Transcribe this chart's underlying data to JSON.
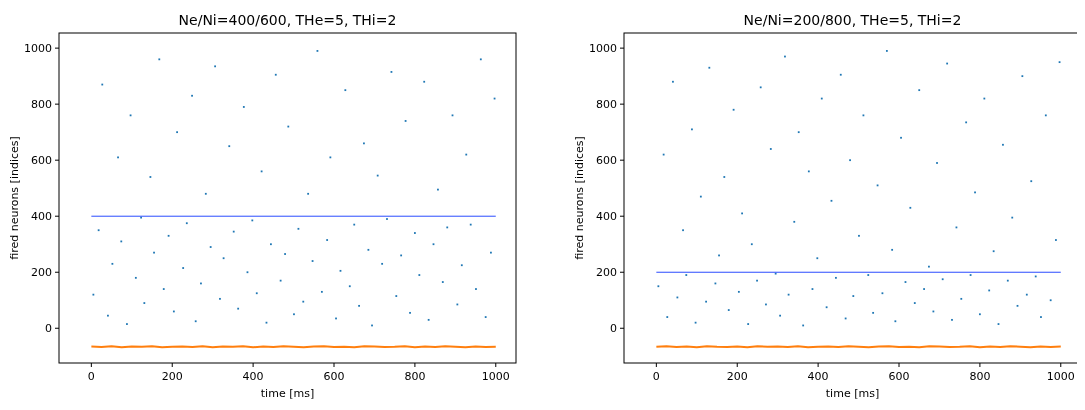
{
  "chart_data": [
    {
      "type": "scatter",
      "title": "Ne/Ni=400/600, THe=5, THi=2",
      "xlabel": "time [ms]",
      "ylabel": "fired neurons [indices]",
      "xlim": [
        -80,
        1050
      ],
      "ylim": [
        -124,
        1054
      ],
      "xticks": [
        0,
        200,
        400,
        600,
        800,
        1000
      ],
      "yticks": [
        0,
        200,
        400,
        600,
        800,
        1000
      ],
      "series": [
        {
          "marker": "square",
          "color": "#1f77b4",
          "x": [
            5,
            18,
            27,
            41,
            52,
            66,
            74,
            88,
            97,
            110,
            123,
            131,
            146,
            155,
            168,
            179,
            191,
            204,
            212,
            227,
            236,
            249,
            258,
            271,
            283,
            295,
            306,
            318,
            327,
            341,
            352,
            363,
            377,
            386,
            398,
            409,
            421,
            433,
            444,
            456,
            468,
            479,
            487,
            501,
            512,
            524,
            536,
            547,
            559,
            570,
            583,
            591,
            605,
            616,
            628,
            639,
            650,
            662,
            674,
            685,
            694,
            708,
            719,
            731,
            742,
            754,
            766,
            777,
            788,
            800,
            811,
            823,
            834,
            846,
            857,
            869,
            880,
            893,
            905,
            916,
            927,
            938,
            951,
            963,
            975,
            988,
            997
          ],
          "values": [
            120,
            350,
            870,
            45,
            230,
            610,
            310,
            15,
            760,
            180,
            395,
            90,
            540,
            270,
            960,
            140,
            330,
            60,
            700,
            215,
            375,
            830,
            25,
            160,
            480,
            290,
            935,
            105,
            250,
            650,
            345,
            70,
            790,
            200,
            385,
            125,
            560,
            20,
            300,
            905,
            170,
            265,
            720,
            50,
            355,
            95,
            480,
            240,
            990,
            130,
            315,
            610,
            35,
            205,
            850,
            150,
            370,
            80,
            660,
            280,
            10,
            545,
            230,
            390,
            915,
            115,
            260,
            740,
            55,
            340,
            190,
            880,
            30,
            300,
            495,
            165,
            360,
            760,
            85,
            225,
            620,
            370,
            140,
            960,
            40,
            270,
            820
          ]
        },
        {
          "type": "line",
          "color": "#2a4bff",
          "x": [
            0,
            1000
          ],
          "values": [
            400,
            400
          ]
        },
        {
          "type": "line",
          "color": "#ff7f0e",
          "x": [
            0,
            25,
            50,
            75,
            100,
            125,
            150,
            175,
            200,
            225,
            250,
            275,
            300,
            325,
            350,
            375,
            400,
            425,
            450,
            475,
            500,
            525,
            550,
            575,
            600,
            625,
            650,
            675,
            700,
            725,
            750,
            775,
            800,
            825,
            850,
            875,
            900,
            925,
            950,
            975,
            1000
          ],
          "values": [
            -65,
            -67,
            -64,
            -68,
            -65,
            -66,
            -64,
            -68,
            -66,
            -65,
            -67,
            -64,
            -68,
            -65,
            -66,
            -64,
            -68,
            -65,
            -67,
            -64,
            -66,
            -68,
            -65,
            -64,
            -67,
            -66,
            -68,
            -64,
            -65,
            -67,
            -66,
            -64,
            -68,
            -65,
            -67,
            -64,
            -66,
            -68,
            -65,
            -67,
            -66
          ]
        }
      ]
    },
    {
      "type": "scatter",
      "title": "Ne/Ni=200/800, THe=5, THi=2",
      "xlabel": "time [ms]",
      "ylabel": "fired neurons [indices]",
      "xlim": [
        -80,
        1050
      ],
      "ylim": [
        -124,
        1054
      ],
      "xticks": [
        0,
        200,
        400,
        600,
        800,
        1000
      ],
      "yticks": [
        0,
        200,
        400,
        600,
        800,
        1000
      ],
      "series": [
        {
          "marker": "square",
          "color": "#1f77b4",
          "x": [
            5,
            18,
            27,
            41,
            52,
            66,
            74,
            88,
            97,
            110,
            123,
            131,
            146,
            155,
            168,
            179,
            191,
            204,
            212,
            227,
            236,
            249,
            258,
            271,
            283,
            295,
            306,
            318,
            327,
            341,
            352,
            363,
            377,
            386,
            398,
            409,
            421,
            433,
            444,
            456,
            468,
            479,
            487,
            501,
            512,
            524,
            536,
            547,
            559,
            570,
            583,
            591,
            605,
            616,
            628,
            639,
            650,
            662,
            674,
            685,
            694,
            708,
            719,
            731,
            742,
            754,
            766,
            777,
            788,
            800,
            811,
            823,
            834,
            846,
            857,
            869,
            880,
            893,
            905,
            916,
            927,
            938,
            951,
            963,
            975,
            988,
            997
          ],
          "values": [
            150,
            620,
            40,
            880,
            110,
            350,
            190,
            710,
            20,
            470,
            95,
            930,
            160,
            260,
            540,
            65,
            780,
            130,
            410,
            15,
            300,
            170,
            860,
            85,
            640,
            195,
            45,
            970,
            120,
            380,
            700,
            10,
            560,
            140,
            250,
            820,
            75,
            455,
            180,
            905,
            35,
            600,
            115,
            330,
            760,
            190,
            55,
            510,
            125,
            990,
            280,
            25,
            680,
            165,
            430,
            90,
            850,
            140,
            220,
            60,
            590,
            175,
            945,
            30,
            360,
            105,
            735,
            190,
            485,
            50,
            820,
            135,
            275,
            15,
            655,
            170,
            395,
            80,
            900,
            120,
            525,
            185,
            40,
            760,
            100,
            315,
            950
          ]
        },
        {
          "type": "line",
          "color": "#2a4bff",
          "x": [
            0,
            1000
          ],
          "values": [
            200,
            200
          ]
        },
        {
          "type": "line",
          "color": "#ff7f0e",
          "x": [
            0,
            25,
            50,
            75,
            100,
            125,
            150,
            175,
            200,
            225,
            250,
            275,
            300,
            325,
            350,
            375,
            400,
            425,
            450,
            475,
            500,
            525,
            550,
            575,
            600,
            625,
            650,
            675,
            700,
            725,
            750,
            775,
            800,
            825,
            850,
            875,
            900,
            925,
            950,
            975,
            1000
          ],
          "values": [
            -66,
            -64,
            -67,
            -65,
            -68,
            -64,
            -66,
            -67,
            -65,
            -68,
            -64,
            -66,
            -65,
            -67,
            -64,
            -68,
            -66,
            -65,
            -67,
            -64,
            -66,
            -68,
            -65,
            -64,
            -67,
            -66,
            -68,
            -64,
            -65,
            -67,
            -66,
            -64,
            -68,
            -65,
            -67,
            -64,
            -66,
            -68,
            -65,
            -67,
            -65
          ]
        }
      ]
    }
  ]
}
